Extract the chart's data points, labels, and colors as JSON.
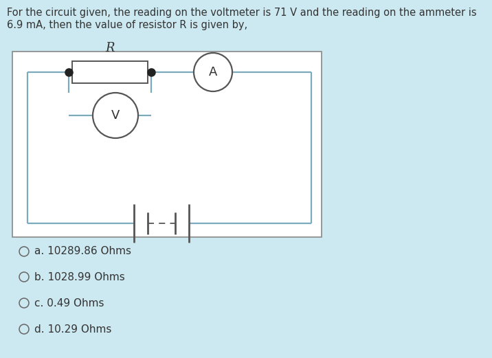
{
  "background_color": "#cce8f0",
  "question_text_line1": "For the circuit given, the reading on the voltmeter is 71 V and the reading on the ammeter is",
  "question_text_line2": "6.9 mA, then the value of resistor R is given by,",
  "circuit_bg": "#ffffff",
  "circuit_border_color": "#888888",
  "wire_color": "#7aaabb",
  "component_edge_color": "#555555",
  "dot_color": "#222222",
  "options": [
    "a. 10289.86 Ohms",
    "b. 1028.99 Ohms",
    "c. 0.49 Ohms",
    "d. 10.29 Ohms"
  ],
  "text_color": "#333333",
  "font_size_question": 10.5,
  "font_size_options": 11
}
